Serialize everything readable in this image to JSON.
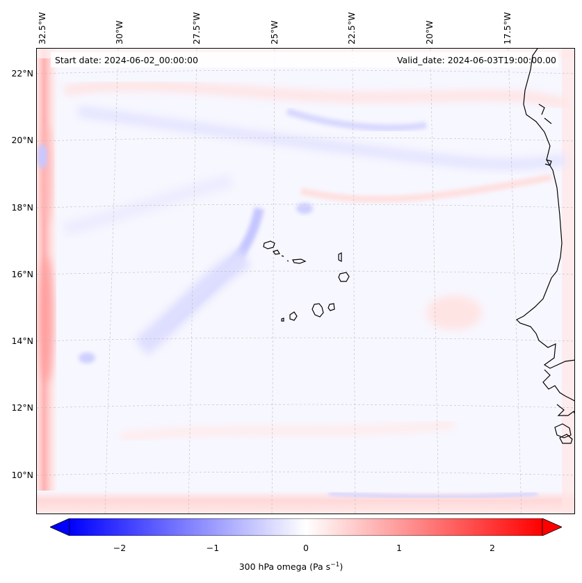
{
  "header": {
    "start_date": "Start date: 2024-06-02_00:00:00",
    "valid_date": "Valid_date: 2024-06-03T19:00:00.00"
  },
  "map": {
    "longitude_labels": [
      "32.5°W",
      "30°W",
      "27.5°W",
      "25°W",
      "22.5°W",
      "20°W",
      "17.5°W"
    ],
    "latitude_labels": [
      "22°N",
      "20°N",
      "18°N",
      "16°N",
      "14°N",
      "12°N",
      "10°N"
    ],
    "field": "300 hPa omega",
    "features": [
      "coastline-west-africa",
      "cape-verde-islands"
    ],
    "grid": "dashed gray graticule"
  },
  "colorbar": {
    "ticks": [
      "−2",
      "−1",
      "0",
      "1",
      "2"
    ],
    "range": [
      -2.6,
      2.6
    ],
    "extend": "both",
    "colormap": "bwr",
    "colors": {
      "negative": "#0000ff",
      "neutral": "#ffffff",
      "positive": "#ff0000"
    },
    "label": "300 hPa omega (Pa s",
    "label_exponent": "−1",
    "label_suffix": ")"
  }
}
